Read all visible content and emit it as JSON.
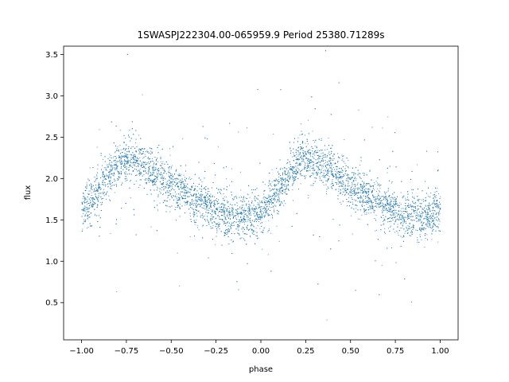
{
  "chart_data": {
    "type": "scatter",
    "title": "1SWASPJ222304.00-065959.9 Period 25380.71289s",
    "xlabel": "phase",
    "ylabel": "flux",
    "xlim": [
      -1.1,
      1.1
    ],
    "ylim": [
      0.05,
      3.6
    ],
    "x_ticks": [
      -1.0,
      -0.75,
      -0.5,
      -0.25,
      0.0,
      0.25,
      0.5,
      0.75,
      1.0
    ],
    "x_tick_labels": [
      "−1.00",
      "−0.75",
      "−0.50",
      "−0.25",
      "0.00",
      "0.25",
      "0.50",
      "0.75",
      "1.00"
    ],
    "y_ticks": [
      0.5,
      1.0,
      1.5,
      2.0,
      2.5,
      3.0,
      3.5
    ],
    "y_tick_labels": [
      "0.5",
      "1.0",
      "1.5",
      "2.0",
      "2.5",
      "3.0",
      "3.5"
    ],
    "grid": false,
    "marker_color": "#1f77b4",
    "series": [
      {
        "x_range": [
          -1.0,
          1.0
        ],
        "mean_curve": {
          "phase": [
            0.0,
            0.05,
            0.1,
            0.15,
            0.2,
            0.25,
            0.3,
            0.35,
            0.4,
            0.45,
            0.5,
            0.55,
            0.6,
            0.65,
            0.7,
            0.75,
            0.8,
            0.85,
            0.9,
            0.95,
            1.0
          ],
          "flux": [
            1.62,
            1.72,
            1.85,
            2.02,
            2.18,
            2.24,
            2.22,
            2.16,
            2.08,
            2.0,
            1.92,
            1.85,
            1.78,
            1.72,
            1.66,
            1.61,
            1.57,
            1.54,
            1.53,
            1.56,
            1.62
          ]
        },
        "scatter_sigma": 0.13
      }
    ]
  }
}
